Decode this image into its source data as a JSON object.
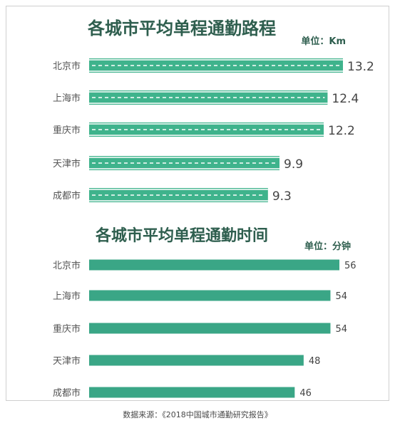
{
  "chart_data": [
    {
      "type": "bar",
      "orientation": "horizontal",
      "title": "各城市平均单程通勤路程",
      "unit_label": "单位：Km",
      "categories": [
        "北京市",
        "上海市",
        "重庆市",
        "天津市",
        "成都市"
      ],
      "values": [
        13.2,
        12.4,
        12.2,
        9.9,
        9.3
      ],
      "value_labels": [
        "13.2",
        "12.4",
        "12.2",
        "9.9",
        "9.3"
      ],
      "style": "road",
      "bar_color": "#3fb38c"
    },
    {
      "type": "bar",
      "orientation": "horizontal",
      "title": "各城市平均单程通勤时间",
      "unit_label": "单位：分钟",
      "categories": [
        "北京市",
        "上海市",
        "重庆市",
        "天津市",
        "成都市"
      ],
      "values": [
        56,
        54,
        54,
        48,
        46
      ],
      "value_labels": [
        "56",
        "54",
        "54",
        "48",
        "46"
      ],
      "style": "solid",
      "bar_color": "#3aa686"
    }
  ],
  "source_note": "数据来源：《2018中国城市通勤研究报告》",
  "colors": {
    "title": "#2e5e4e",
    "label": "#555555",
    "value": "#444444"
  }
}
